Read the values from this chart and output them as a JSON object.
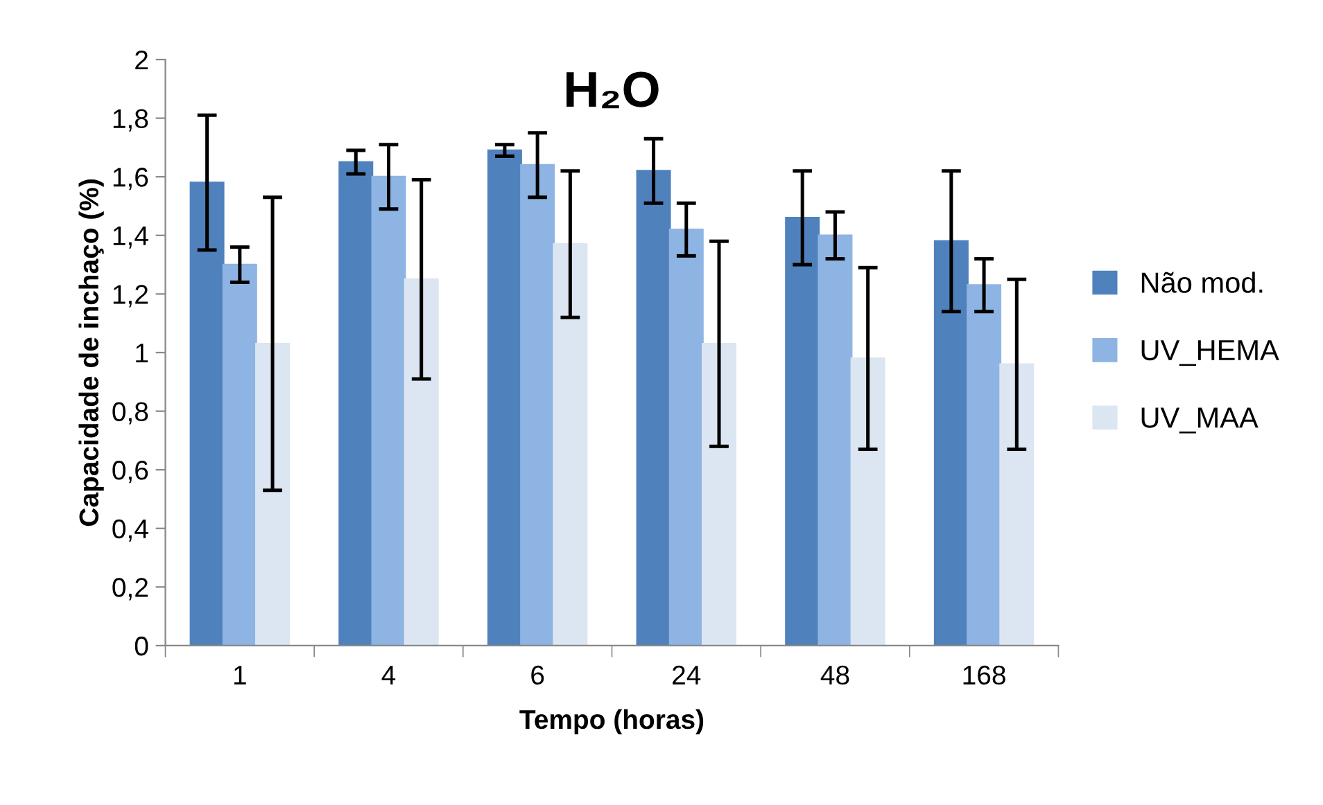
{
  "chart_data": {
    "type": "bar",
    "title": "H₂O",
    "xlabel": "Tempo (horas)",
    "ylabel": "Capacidade de inchaço (%)",
    "categories": [
      "1",
      "4",
      "6",
      "24",
      "48",
      "168"
    ],
    "series": [
      {
        "name": "Não mod.",
        "color": "#4f81bd",
        "values": [
          1.58,
          1.65,
          1.69,
          1.62,
          1.46,
          1.38
        ],
        "errors": [
          0.23,
          0.04,
          0.02,
          0.11,
          0.16,
          0.24
        ]
      },
      {
        "name": "UV_HEMA",
        "color": "#8eb4e3",
        "values": [
          1.3,
          1.6,
          1.64,
          1.42,
          1.4,
          1.23
        ],
        "errors": [
          0.06,
          0.11,
          0.11,
          0.09,
          0.08,
          0.09
        ]
      },
      {
        "name": "UV_MAA",
        "color": "#dce6f2",
        "values": [
          1.03,
          1.25,
          1.37,
          1.03,
          0.98,
          0.96
        ],
        "errors": [
          0.5,
          0.34,
          0.25,
          0.35,
          0.31,
          0.29
        ]
      }
    ],
    "ylim": [
      0,
      2
    ],
    "yticks": [
      0,
      {
        "value": 0.2,
        "label": "0,2"
      },
      {
        "value": 0.4,
        "label": "0,4"
      },
      {
        "value": 0.6,
        "label": "0,6"
      },
      {
        "value": 0.8,
        "label": "0,8"
      },
      1,
      {
        "value": 1.2,
        "label": "1,2"
      },
      {
        "value": 1.4,
        "label": "1,4"
      },
      {
        "value": 1.6,
        "label": "1,6"
      },
      {
        "value": 1.8,
        "label": "1,8"
      },
      2
    ],
    "legend": "right",
    "grid": false
  }
}
